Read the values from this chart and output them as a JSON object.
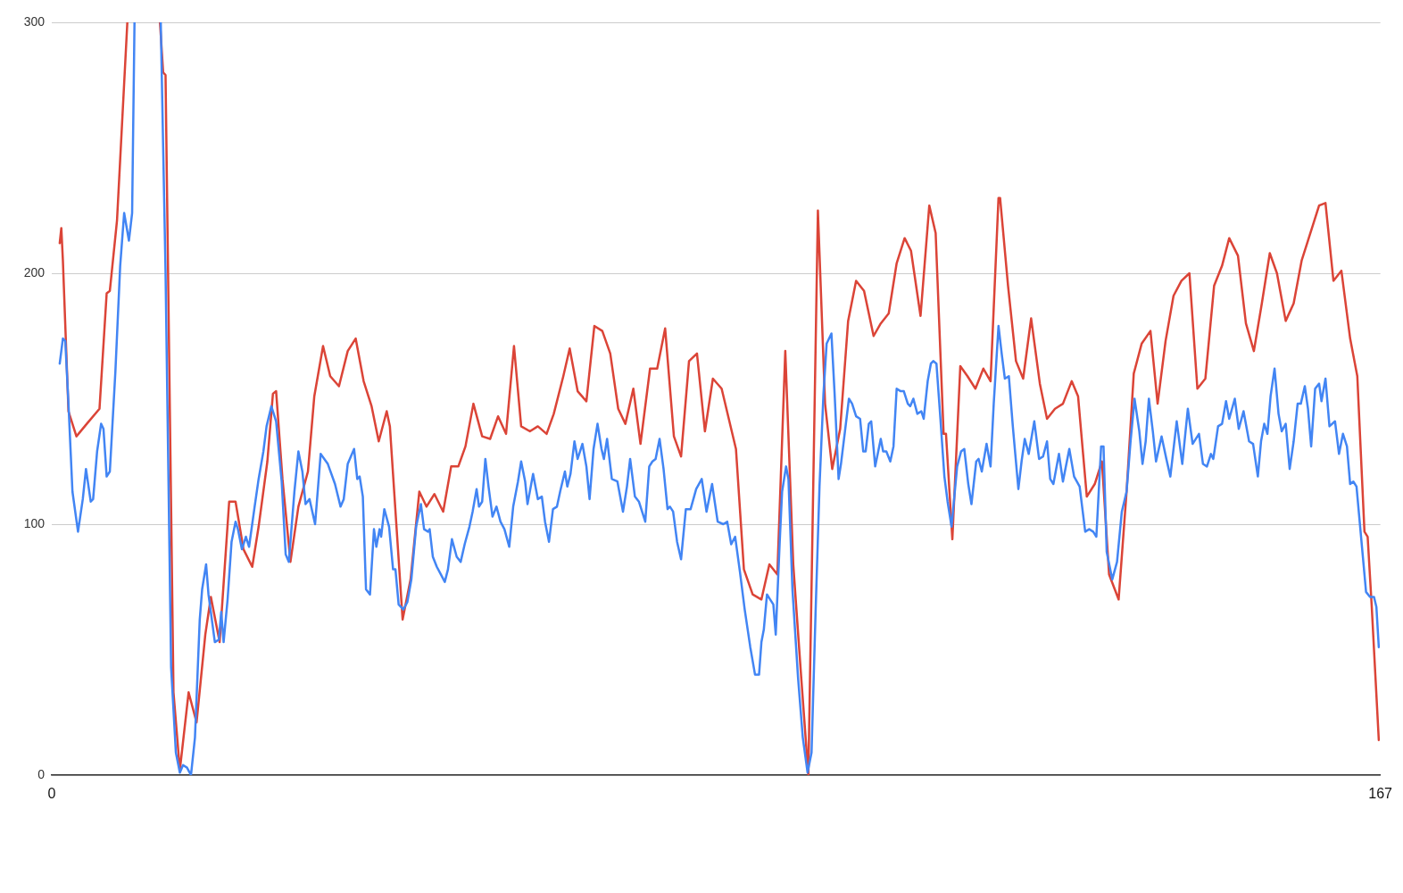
{
  "chart_data": {
    "type": "line",
    "xlim": [
      0,
      167
    ],
    "xticks": [
      0,
      167
    ],
    "ylim": [
      0,
      300
    ],
    "yticks": [
      0,
      100,
      200,
      300
    ],
    "grid": "y",
    "series": [
      {
        "color": "#4285f4",
        "x": [
          1.0,
          1.4,
          1.7,
          2.1,
          2.6,
          3.3,
          3.9,
          4.3,
          4.9,
          5.2,
          5.7,
          6.2,
          6.5,
          6.9,
          7.3,
          8.0,
          8.6,
          9.1,
          9.7,
          10.1,
          10.4,
          12.0,
          13.7,
          14.3,
          15.0,
          15.6,
          16.1,
          16.5,
          17.0,
          17.5,
          18.0,
          18.6,
          18.9,
          19.4,
          19.7,
          20.5,
          21.0,
          21.3,
          21.6,
          22.1,
          22.6,
          23.1,
          23.4,
          23.9,
          24.4,
          24.8,
          25.5,
          26.0,
          26.6,
          27.0,
          27.6,
          28.2,
          28.9,
          29.4,
          29.8,
          30.5,
          31.0,
          31.5,
          31.9,
          32.4,
          33.1,
          33.8,
          34.7,
          35.6,
          36.3,
          36.7,
          37.2,
          38.0,
          38.4,
          38.7,
          39.1,
          39.5,
          40.0,
          40.5,
          40.8,
          41.2,
          41.4,
          41.8,
          42.4,
          42.9,
          43.2,
          43.6,
          44.2,
          44.7,
          45.2,
          45.8,
          46.4,
          46.8,
          47.3,
          47.5,
          47.9,
          48.4,
          48.9,
          49.4,
          49.8,
          50.3,
          50.9,
          51.4,
          51.9,
          52.5,
          52.9,
          53.4,
          53.7,
          54.1,
          54.5,
          54.9,
          55.4,
          55.9,
          56.4,
          56.9,
          57.5,
          58.0,
          58.6,
          59.0,
          59.5,
          59.8,
          60.5,
          61.1,
          61.6,
          62.0,
          62.5,
          63.0,
          63.5,
          63.9,
          64.5,
          64.8,
          65.2,
          65.7,
          66.1,
          66.7,
          67.2,
          67.6,
          68.1,
          68.6,
          69.1,
          69.4,
          69.8,
          70.4,
          71.1,
          71.8,
          72.3,
          72.7,
          73.3,
          73.8,
          74.2,
          74.6,
          75.1,
          75.5,
          75.9,
          76.4,
          76.9,
          77.4,
          77.7,
          78.1,
          78.6,
          79.1,
          79.7,
          80.3,
          81.0,
          81.7,
          82.3,
          83.0,
          83.7,
          84.4,
          84.9,
          85.4,
          85.9,
          86.5,
          87.1,
          87.8,
          88.4,
          88.9,
          89.2,
          89.5,
          89.9,
          90.3,
          90.7,
          91.0,
          91.5,
          91.8,
          92.3,
          92.6,
          93.1,
          93.8,
          94.4,
          95.0,
          95.5,
          96.0,
          96.5,
          97.0,
          97.4,
          98.0,
          98.4,
          98.9,
          99.2,
          99.7,
          100.2,
          100.6,
          101.1,
          101.6,
          102.0,
          102.3,
          102.7,
          103.0,
          103.5,
          104.2,
          104.5,
          104.9,
          105.4,
          105.8,
          106.2,
          106.7,
          107.1,
          107.6,
          107.9,
          108.3,
          108.8,
          109.3,
          109.6,
          110.1,
          110.5,
          110.8,
          111.2,
          111.7,
          112.2,
          112.6,
          113.1,
          113.8,
          114.3,
          114.7,
          115.2,
          115.6,
          116.2,
          116.5,
          116.9,
          117.5,
          118.0,
          118.4,
          119.0,
          119.4,
          119.8,
          120.3,
          120.8,
          121.5,
          121.9,
          122.3,
          122.8,
          123.5,
          124.1,
          124.6,
          125.1,
          125.5,
          125.9,
          126.6,
          127.1,
          127.9,
          128.5,
          129.2,
          129.9,
          130.4,
          130.9,
          131.3,
          131.9,
          132.2,
          132.6,
          133.3,
          133.9,
          134.5,
          135.1,
          135.6,
          136.1,
          136.7,
          137.1,
          137.5,
          137.9,
          138.4,
          138.8,
          139.5,
          140.1,
          140.6,
          141.4,
          142.1,
          142.8,
          143.4,
          144.2,
          144.7,
          145.2,
          145.7,
          146.0,
          146.6,
          147.1,
          147.6,
          148.0,
          148.7,
          149.2,
          149.8,
          150.5,
          151.0,
          151.6,
          152.0,
          152.4,
          152.8,
          153.2,
          153.7,
          154.2,
          154.6,
          155.1,
          155.6,
          156.1,
          156.6,
          157.0,
          157.5,
          157.9,
          158.3,
          158.8,
          159.3,
          159.6,
          160.1,
          160.6,
          161.3,
          161.8,
          162.3,
          162.8,
          163.2,
          163.6,
          164.0,
          164.6,
          165.2,
          165.7,
          166.2,
          166.5,
          166.8
        ],
        "values": [
          164,
          174,
          173,
          148,
          113,
          97,
          110,
          122,
          109,
          110,
          129,
          140,
          138,
          119,
          121,
          161,
          203,
          224,
          213,
          224,
          300,
          null,
          300,
          201,
          43,
          9,
          1,
          4,
          3,
          0,
          15,
          62,
          74,
          84,
          72,
          53,
          54,
          65,
          53,
          70,
          93,
          101,
          98,
          90,
          95,
          91,
          107,
          118,
          129,
          139,
          147,
          141,
          117,
          88,
          85,
          113,
          129,
          121,
          108,
          110,
          100,
          128,
          124,
          116,
          107,
          110,
          124,
          130,
          118,
          119,
          111,
          74,
          72,
          98,
          91,
          98,
          95,
          106,
          99,
          82,
          82,
          68,
          66,
          69,
          78,
          99,
          108,
          98,
          97,
          98,
          87,
          83,
          80,
          77,
          82,
          94,
          87,
          85,
          92,
          99,
          105,
          114,
          107,
          109,
          126,
          115,
          103,
          107,
          101,
          98,
          91,
          107,
          117,
          125,
          117,
          108,
          120,
          110,
          111,
          101,
          93,
          106,
          107,
          113,
          121,
          115,
          120,
          133,
          126,
          132,
          123,
          110,
          130,
          140,
          130,
          126,
          134,
          118,
          117,
          105,
          115,
          126,
          111,
          109,
          105,
          101,
          123,
          125,
          126,
          134,
          122,
          106,
          107,
          105,
          93,
          86,
          106,
          106,
          114,
          118,
          105,
          116,
          101,
          100,
          101,
          92,
          95,
          81,
          66,
          51,
          40,
          40,
          53,
          58,
          72,
          70,
          68,
          56,
          93,
          113,
          123,
          118,
          74,
          39,
          15,
          1,
          9,
          64,
          115,
          152,
          172,
          176,
          152,
          118,
          124,
          137,
          150,
          148,
          143,
          142,
          129,
          129,
          140,
          141,
          123,
          134,
          129,
          129,
          125,
          131,
          154,
          153,
          153,
          148,
          147,
          150,
          144,
          145,
          142,
          157,
          164,
          165,
          164,
          142,
          119,
          109,
          99,
          123,
          129,
          130,
          116,
          108,
          125,
          126,
          121,
          132,
          123,
          148,
          179,
          168,
          158,
          159,
          139,
          114,
          125,
          134,
          128,
          141,
          126,
          127,
          133,
          118,
          116,
          128,
          117,
          130,
          119,
          115,
          97,
          98,
          97,
          95,
          131,
          131,
          89,
          78,
          85,
          105,
          113,
          133,
          150,
          137,
          124,
          133,
          150,
          137,
          125,
          135,
          126,
          119,
          141,
          124,
          146,
          132,
          136,
          124,
          123,
          128,
          126,
          139,
          140,
          149,
          142,
          150,
          138,
          145,
          133,
          132,
          119,
          133,
          140,
          136,
          151,
          162,
          144,
          137,
          140,
          122,
          133,
          148,
          148,
          155,
          146,
          131,
          154,
          156,
          149,
          158,
          139,
          141,
          128,
          136,
          131,
          116,
          117,
          115,
          94,
          73,
          71,
          71,
          67,
          51
        ]
      },
      {
        "color": "#db4437",
        "x": [
          1.0,
          1.2,
          1.4,
          2.1,
          3.1,
          4.4,
          6.0,
          6.9,
          7.3,
          8.2,
          9.5,
          11.5,
          13.6,
          14.0,
          14.3,
          15.3,
          16.1,
          17.2,
          18.2,
          19.3,
          20.0,
          21.1,
          22.3,
          23.1,
          24.1,
          25.2,
          26.0,
          27.1,
          27.8,
          28.2,
          29.0,
          30.0,
          31.0,
          32.2,
          33.0,
          34.1,
          35.0,
          36.1,
          37.2,
          38.2,
          39.2,
          40.2,
          41.1,
          42.1,
          42.5,
          44.1,
          45.1,
          46.2,
          47.1,
          48.1,
          49.2,
          50.2,
          51.1,
          52.0,
          53.0,
          54.1,
          55.1,
          56.1,
          57.1,
          58.1,
          59.0,
          60.1,
          61.1,
          62.2,
          63.1,
          64.3,
          65.1,
          66.1,
          67.2,
          68.2,
          69.2,
          70.2,
          71.2,
          72.1,
          73.1,
          74.0,
          75.2,
          76.1,
          77.1,
          78.2,
          79.1,
          80.1,
          81.1,
          82.1,
          83.1,
          84.2,
          86.0,
          87.0,
          88.1,
          89.2,
          90.2,
          91.2,
          92.2,
          93.2,
          94.2,
          95.1,
          96.3,
          97.2,
          98.1,
          99.1,
          100.1,
          101.1,
          102.1,
          103.3,
          104.2,
          105.2,
          106.2,
          107.2,
          108.0,
          109.2,
          110.3,
          111.1,
          112.1,
          112.4,
          113.2,
          114.2,
          115.1,
          116.1,
          117.1,
          118.0,
          119.0,
          119.2,
          120.2,
          121.2,
          122.1,
          123.1,
          124.2,
          125.1,
          126.1,
          127.1,
          128.2,
          129.0,
          130.1,
          131.1,
          132.0,
          132.9,
          134.1,
          135.1,
          136.0,
          137.0,
          138.1,
          139.0,
          140.0,
          141.0,
          142.0,
          143.0,
          144.0,
          145.0,
          146.1,
          147.1,
          148.0,
          149.1,
          150.1,
          151.1,
          152.1,
          153.1,
          154.0,
          155.1,
          156.1,
          157.1,
          158.0,
          159.3,
          160.1,
          161.1,
          162.1,
          163.2,
          164.1,
          165.0,
          165.4,
          165.9,
          166.8
        ],
        "values": [
          212,
          218,
          205,
          145,
          135,
          140,
          146,
          192,
          193,
          221,
          300,
          null,
          300,
          280,
          279,
          33,
          2,
          33,
          21,
          56,
          71,
          53,
          109,
          109,
          90,
          83,
          99,
          125,
          152,
          153,
          118,
          85,
          107,
          121,
          151,
          171,
          159,
          155,
          169,
          174,
          157,
          147,
          133,
          145,
          139,
          62,
          78,
          113,
          107,
          112,
          105,
          123,
          123,
          131,
          148,
          135,
          134,
          143,
          136,
          171,
          139,
          137,
          139,
          136,
          144,
          159,
          170,
          153,
          149,
          179,
          177,
          168,
          146,
          140,
          154,
          132,
          162,
          162,
          178,
          135,
          127,
          165,
          168,
          137,
          158,
          154,
          130,
          82,
          72,
          70,
          84,
          80,
          169,
          84,
          39,
          0,
          225,
          148,
          122,
          138,
          181,
          197,
          193,
          175,
          180,
          184,
          204,
          214,
          209,
          183,
          227,
          216,
          136,
          136,
          94,
          163,
          159,
          154,
          162,
          157,
          230,
          230,
          195,
          165,
          158,
          182,
          156,
          142,
          146,
          148,
          157,
          151,
          111,
          116,
          125,
          80,
          70,
          113,
          160,
          172,
          177,
          148,
          173,
          191,
          197,
          200,
          154,
          158,
          195,
          203,
          214,
          207,
          180,
          169,
          188,
          208,
          200,
          181,
          188,
          205,
          214,
          227,
          228,
          197,
          201,
          174,
          159,
          97,
          95,
          68,
          14
        ]
      }
    ]
  }
}
